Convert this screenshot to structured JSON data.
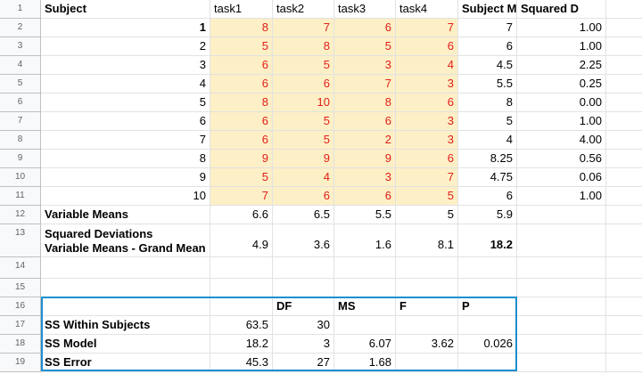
{
  "rows": [
    {
      "num": "1",
      "cells": {
        "A": "Subject",
        "B": "task1",
        "C": "task2",
        "D": "task3",
        "E": "task4",
        "F": "Subject Means",
        "G": "Squared D"
      }
    },
    {
      "num": "2",
      "cells": {
        "A": "1",
        "B": "8",
        "C": "7",
        "D": "6",
        "E": "7",
        "F": "7",
        "G": "1.00"
      }
    },
    {
      "num": "3",
      "cells": {
        "A": "2",
        "B": "5",
        "C": "8",
        "D": "5",
        "E": "6",
        "F": "6",
        "G": "1.00"
      }
    },
    {
      "num": "4",
      "cells": {
        "A": "3",
        "B": "6",
        "C": "5",
        "D": "3",
        "E": "4",
        "F": "4.5",
        "G": "2.25"
      }
    },
    {
      "num": "5",
      "cells": {
        "A": "4",
        "B": "6",
        "C": "6",
        "D": "7",
        "E": "3",
        "F": "5.5",
        "G": "0.25"
      }
    },
    {
      "num": "6",
      "cells": {
        "A": "5",
        "B": "8",
        "C": "10",
        "D": "8",
        "E": "6",
        "F": "8",
        "G": "0.00"
      }
    },
    {
      "num": "7",
      "cells": {
        "A": "6",
        "B": "6",
        "C": "5",
        "D": "6",
        "E": "3",
        "F": "5",
        "G": "1.00"
      }
    },
    {
      "num": "8",
      "cells": {
        "A": "7",
        "B": "6",
        "C": "5",
        "D": "2",
        "E": "3",
        "F": "4",
        "G": "4.00"
      }
    },
    {
      "num": "9",
      "cells": {
        "A": "8",
        "B": "9",
        "C": "9",
        "D": "9",
        "E": "6",
        "F": "8.25",
        "G": "0.56"
      }
    },
    {
      "num": "10",
      "cells": {
        "A": "9",
        "B": "5",
        "C": "4",
        "D": "3",
        "E": "7",
        "F": "4.75",
        "G": "0.06"
      }
    },
    {
      "num": "11",
      "cells": {
        "A": "10",
        "B": "7",
        "C": "6",
        "D": "6",
        "E": "5",
        "F": "6",
        "G": "1.00"
      }
    },
    {
      "num": "12",
      "cells": {
        "A": "Variable Means",
        "B": "6.6",
        "C": "6.5",
        "D": "5.5",
        "E": "5",
        "F": "5.9",
        "G": ""
      }
    },
    {
      "num": "13",
      "cells": {
        "A": "Squared Deviations",
        "A2": "Variable Means - Grand Mean",
        "B": "4.9",
        "C": "3.6",
        "D": "1.6",
        "E": "8.1",
        "F": "18.2",
        "G": ""
      }
    },
    {
      "num": "14",
      "cells": {
        "A": "",
        "B": "",
        "C": "",
        "D": "",
        "E": "",
        "F": "",
        "G": ""
      }
    },
    {
      "num": "15",
      "cells": {
        "A": "",
        "B": "",
        "C": "",
        "D": "",
        "E": "",
        "F": "",
        "G": ""
      }
    },
    {
      "num": "16",
      "cells": {
        "A": "",
        "B": "",
        "C": "DF",
        "D": "MS",
        "E": "F",
        "F": "P",
        "G": ""
      }
    },
    {
      "num": "17",
      "cells": {
        "A": "SS Within Subjects",
        "B": "63.5",
        "C": "30",
        "D": "",
        "E": "",
        "F": "",
        "G": ""
      }
    },
    {
      "num": "18",
      "cells": {
        "A": "SS Model",
        "B": "18.2",
        "C": "3",
        "D": "6.07",
        "E": "3.62",
        "F": "0.026",
        "G": ""
      }
    },
    {
      "num": "19",
      "cells": {
        "A": "SS Error",
        "B": "45.3",
        "C": "27",
        "D": "1.68",
        "E": "",
        "F": "",
        "G": ""
      }
    }
  ],
  "colors": {
    "highlight": "#fdefc6",
    "red_text": "#e0201a",
    "selection": "#1a8fd0"
  }
}
